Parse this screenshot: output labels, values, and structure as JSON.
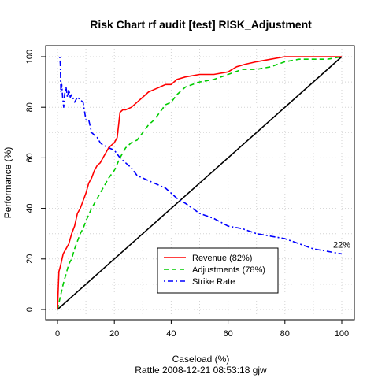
{
  "chart_data": {
    "type": "line",
    "title": "Risk Chart rf audit [test] RISK_Adjustment",
    "xlabel": "Caseload (%)",
    "ylabel": "Performance (%)",
    "footer": "Rattle 2008-12-21 08:53:18 gjw",
    "xlim": [
      0,
      100
    ],
    "ylim": [
      0,
      100
    ],
    "xticks": [
      0,
      20,
      40,
      60,
      80,
      100
    ],
    "yticks": [
      0,
      20,
      40,
      60,
      80,
      100
    ],
    "grid": true,
    "legend_position": "bottom-center",
    "series": [
      {
        "name": "Revenue (82%)",
        "color": "#ff0000",
        "dash": "solid",
        "x": [
          0,
          0.5,
          1,
          2,
          3,
          4,
          5,
          6,
          7,
          8,
          9,
          10,
          11,
          12,
          13,
          14,
          15,
          16,
          17,
          18,
          19,
          20,
          21,
          22,
          23,
          24,
          26,
          28,
          30,
          32,
          34,
          36,
          38,
          40,
          42,
          45,
          50,
          55,
          60,
          63,
          66,
          70,
          75,
          80,
          90,
          100
        ],
        "y": [
          0,
          15,
          17,
          22,
          24,
          26,
          30,
          33,
          38,
          40,
          43,
          46,
          50,
          52,
          55,
          57,
          58,
          60,
          62,
          64,
          65,
          66,
          68,
          78,
          79,
          79,
          80,
          82,
          84,
          86,
          87,
          88,
          89,
          89,
          91,
          92,
          93,
          93,
          94,
          96,
          97,
          98,
          99,
          100,
          100,
          100
        ]
      },
      {
        "name": "Adjustments (78%)",
        "color": "#00cc00",
        "dash": "dashed",
        "x": [
          0,
          1,
          2,
          3,
          4,
          5,
          6,
          7,
          8,
          9,
          10,
          12,
          14,
          16,
          18,
          20,
          22,
          24,
          26,
          28,
          30,
          32,
          34,
          36,
          38,
          40,
          42,
          45,
          50,
          55,
          60,
          65,
          70,
          75,
          80,
          85,
          90,
          95,
          100
        ],
        "y": [
          0,
          5,
          10,
          14,
          18,
          20,
          24,
          27,
          30,
          32,
          35,
          40,
          44,
          48,
          52,
          55,
          60,
          64,
          66,
          67,
          70,
          73,
          75,
          78,
          81,
          82,
          85,
          88,
          90,
          91,
          93,
          95,
          95,
          96,
          98,
          99,
          99,
          99,
          100
        ]
      },
      {
        "name": "Strike Rate",
        "color": "#0000ff",
        "dash": "dotdash",
        "x": [
          0.8,
          1,
          1.2,
          1.5,
          1.8,
          2.2,
          2.5,
          3,
          3.5,
          4,
          4.5,
          5,
          6,
          7,
          8,
          9,
          10,
          11,
          12,
          13,
          14,
          15,
          16,
          18,
          20,
          22,
          24,
          26,
          28,
          30,
          32,
          34,
          36,
          38,
          40,
          42,
          45,
          50,
          55,
          60,
          65,
          70,
          75,
          80,
          85,
          90,
          95,
          100
        ],
        "y": [
          100,
          97,
          86,
          89,
          84,
          80,
          85,
          88,
          84,
          87,
          84,
          85,
          82,
          84,
          83,
          82,
          75,
          75,
          70,
          69,
          68,
          66,
          65,
          64,
          63,
          60,
          58,
          56,
          53,
          52,
          51,
          50,
          49,
          48,
          46,
          44,
          42,
          38,
          36,
          33,
          32,
          30,
          29,
          28,
          26,
          24,
          23,
          22
        ]
      },
      {
        "name": "",
        "color": "#000000",
        "dash": "solid",
        "x": [
          0,
          100
        ],
        "y": [
          0,
          100
        ]
      }
    ],
    "annotations": [
      {
        "text": "22%",
        "x": 100,
        "y": 22
      }
    ]
  }
}
